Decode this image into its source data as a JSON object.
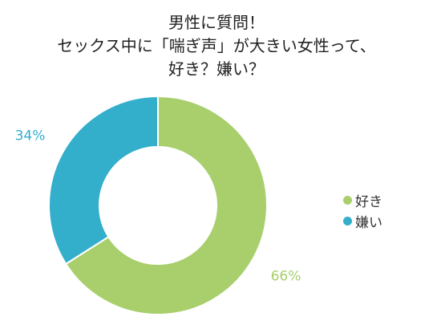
{
  "title": {
    "line1": "男性に質問！",
    "line2": "セックス中に「喘ぎ声」が大きい女性って、",
    "line3": "好き？嫌い？"
  },
  "chart_data": {
    "type": "pie",
    "variant": "donut",
    "title": "男性に質問！セックス中に「喘ぎ声」が大きい女性って、好き？嫌い？",
    "categories": [
      "好き",
      "嫌い"
    ],
    "values": [
      66,
      34
    ],
    "labels": [
      "66%",
      "34%"
    ],
    "unit": "%",
    "legend_position": "right",
    "colors": [
      "#a8cf6c",
      "#33aecb"
    ]
  }
}
